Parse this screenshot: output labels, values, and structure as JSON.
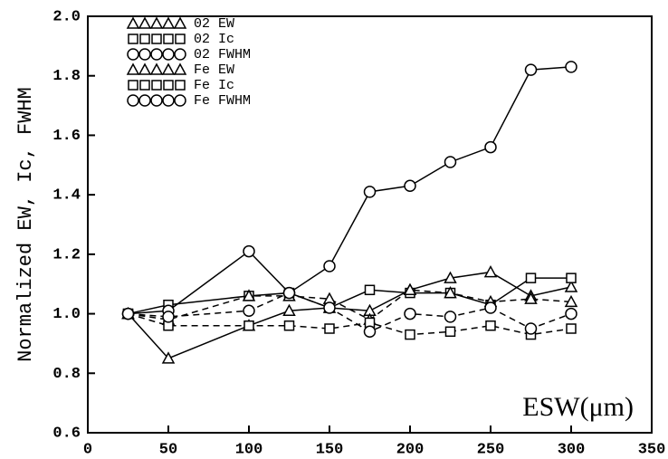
{
  "chart_data": {
    "type": "line",
    "y_label": "Normalized EW, Ic, FWHM",
    "x_label": "ESW(μm)",
    "x": [
      25,
      50,
      100,
      125,
      150,
      175,
      200,
      225,
      250,
      275,
      300
    ],
    "series": [
      {
        "name": "02 EW",
        "color": "#000000",
        "marker": "triangle",
        "dashed": false,
        "values": [
          1.0,
          0.85,
          0.96,
          1.01,
          1.02,
          1.01,
          1.08,
          1.12,
          1.14,
          1.06,
          1.09
        ]
      },
      {
        "name": "02 Ic",
        "color": "#000000",
        "marker": "square",
        "dashed": false,
        "values": [
          1.0,
          1.03,
          1.06,
          1.07,
          1.02,
          1.08,
          1.07,
          1.07,
          1.03,
          1.12,
          1.12
        ]
      },
      {
        "name": "02 FWHM",
        "color": "#000000",
        "marker": "circle",
        "dashed": false,
        "values": [
          1.0,
          1.01,
          1.21,
          1.07,
          1.16,
          1.41,
          1.43,
          1.51,
          1.56,
          1.82,
          1.83
        ]
      },
      {
        "name": "Fe EW",
        "color": "#000000",
        "marker": "triangle",
        "dashed": true,
        "values": [
          1.0,
          0.98,
          1.06,
          1.06,
          1.05,
          0.98,
          1.08,
          1.07,
          1.04,
          1.05,
          1.04
        ]
      },
      {
        "name": "Fe Ic",
        "color": "#000000",
        "marker": "square",
        "dashed": true,
        "values": [
          1.0,
          0.96,
          0.96,
          0.96,
          0.95,
          0.97,
          0.93,
          0.94,
          0.96,
          0.93,
          0.95
        ]
      },
      {
        "name": "Fe FWHM",
        "color": "#000000",
        "marker": "circle",
        "dashed": true,
        "values": [
          1.0,
          0.99,
          1.01,
          1.07,
          1.02,
          0.94,
          1.0,
          0.99,
          1.02,
          0.95,
          1.0
        ]
      }
    ],
    "xlim": [
      0,
      350
    ],
    "xticks": [
      0,
      50,
      100,
      150,
      200,
      250,
      300,
      350
    ],
    "ylim": [
      0.6,
      2.0
    ],
    "yticks": [
      0.6,
      0.8,
      {
        "value": 1,
        "label": "1.0"
      },
      1.2,
      1.4,
      1.6,
      1.8,
      {
        "value": 2,
        "label": "2.0"
      }
    ],
    "grid": false
  }
}
